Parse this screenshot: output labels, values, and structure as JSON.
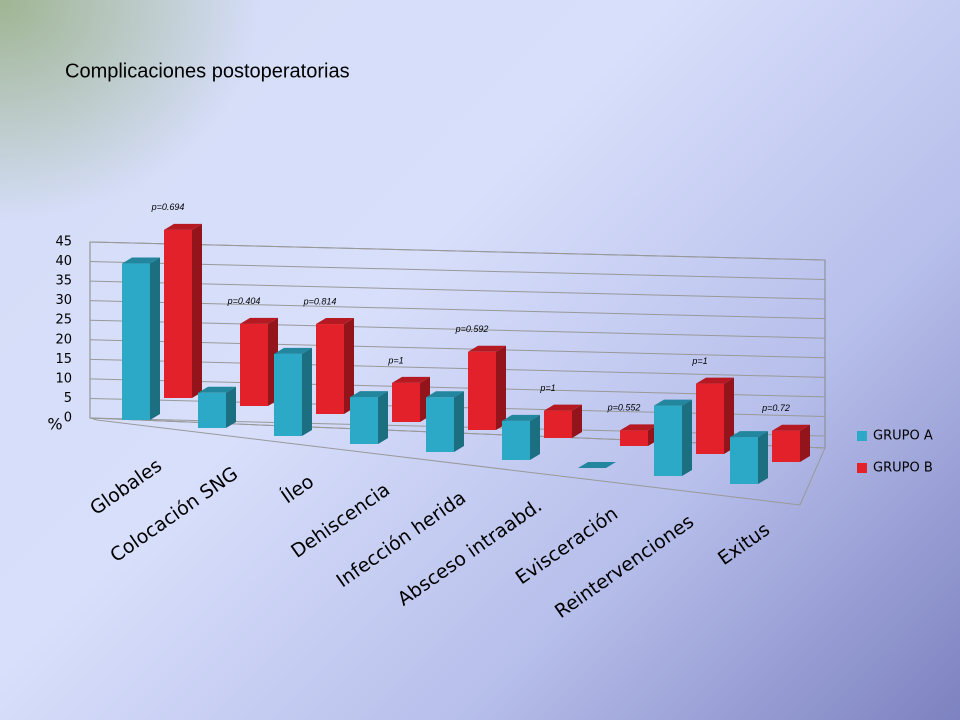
{
  "chart_data": {
    "type": "bar3d",
    "title": "Complicaciones postoperatorias",
    "y_label": "%",
    "categories": [
      "Globales",
      "Colocación SNG",
      "Íleo",
      "Dehiscencia",
      "Infección herida",
      "Absceso intraabd.",
      "Evisceración",
      "Reintervenciones",
      "Exitus"
    ],
    "series": [
      {
        "name": "GRUPO A",
        "color": "#2ba9c6",
        "values": [
          40,
          9,
          21,
          12,
          14,
          10,
          0,
          18,
          12
        ]
      },
      {
        "name": "GRUPO B",
        "color": "#e2212a",
        "values": [
          43,
          21,
          23,
          10,
          20,
          7,
          4,
          18,
          8
        ]
      }
    ],
    "annotations": [
      "p=0.694",
      "p=0.404",
      "p=0.814",
      "p=1",
      "p=0.592",
      "p=1",
      "p=0.552",
      "p=1",
      "p=0.72"
    ],
    "ylim": [
      0,
      45
    ],
    "yticks": [
      0,
      5,
      10,
      15,
      20,
      25,
      30,
      35,
      40,
      45
    ],
    "grid": true,
    "legend": "right"
  }
}
